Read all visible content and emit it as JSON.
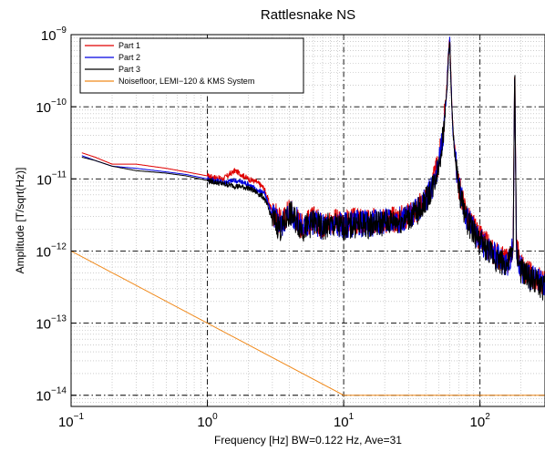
{
  "chart_data": {
    "type": "line",
    "title": "Rattlesnake NS",
    "xlabel": "Frequency [Hz]  BW=0.122 Hz, Ave=31",
    "ylabel": "Amplitude [T/sqrt(Hz)]",
    "xscale": "log",
    "yscale": "log",
    "xlim": [
      0.1,
      300
    ],
    "ylim": [
      7e-15,
      1e-09
    ],
    "x_ticks": [
      {
        "base": "10",
        "exp": "−1"
      },
      {
        "base": "10",
        "exp": "0"
      },
      {
        "base": "10",
        "exp": "1"
      },
      {
        "base": "10",
        "exp": "2"
      }
    ],
    "y_ticks": [
      {
        "base": "10",
        "exp": "−9"
      },
      {
        "base": "10",
        "exp": "−10"
      },
      {
        "base": "10",
        "exp": "−11"
      },
      {
        "base": "10",
        "exp": "−12"
      },
      {
        "base": "10",
        "exp": "−13"
      },
      {
        "base": "10",
        "exp": "−14"
      }
    ],
    "grid": true,
    "legend_position": "top-left",
    "series": [
      {
        "name": "Part 1",
        "color": "#e00000",
        "x": [
          0.12,
          0.15,
          0.2,
          0.3,
          0.5,
          0.7,
          1.0,
          1.3,
          1.6,
          2.0,
          2.3,
          2.6,
          3.0,
          3.5,
          4.0,
          5.0,
          6.0,
          7.0,
          8.0,
          10,
          12,
          15,
          20,
          25,
          30,
          35,
          40,
          45,
          50,
          54,
          57,
          59,
          60,
          61,
          63,
          66,
          70,
          80,
          100,
          130,
          160,
          175,
          180,
          185,
          200,
          250,
          300
        ],
        "y": [
          2.3e-11,
          2e-11,
          1.6e-11,
          1.6e-11,
          1.4e-11,
          1.25e-11,
          1.1e-11,
          1e-11,
          1.3e-11,
          1e-11,
          9e-12,
          7.5e-12,
          3.5e-12,
          2.4e-12,
          3.8e-12,
          2.2e-12,
          2.8e-12,
          2.3e-12,
          2.6e-12,
          2.4e-12,
          2.6e-12,
          2.5e-12,
          2.7e-12,
          2.8e-12,
          3.1e-12,
          3.8e-12,
          5.5e-12,
          8.5e-12,
          1.8e-11,
          5e-11,
          1.8e-10,
          6e-10,
          9.5e-10,
          3e-10,
          6e-11,
          2e-11,
          8e-12,
          3e-12,
          1.5e-12,
          9e-13,
          7e-13,
          1.2e-12,
          3.5e-10,
          1.2e-12,
          6e-13,
          4.5e-13,
          3.5e-13
        ]
      },
      {
        "name": "Part 2",
        "color": "#0000e0",
        "x": [
          0.12,
          0.15,
          0.2,
          0.3,
          0.5,
          0.7,
          1.0,
          1.3,
          1.6,
          2.0,
          2.3,
          2.6,
          3.0,
          3.5,
          4.0,
          5.0,
          6.0,
          7.0,
          8.0,
          10,
          12,
          15,
          20,
          25,
          30,
          35,
          40,
          45,
          50,
          54,
          57,
          59,
          60,
          61,
          63,
          66,
          70,
          80,
          100,
          130,
          160,
          175,
          180,
          185,
          200,
          250,
          300
        ],
        "y": [
          2.1e-11,
          1.8e-11,
          1.5e-11,
          1.4e-11,
          1.25e-11,
          1.15e-11,
          1e-11,
          9e-12,
          9.5e-12,
          8.5e-12,
          7e-12,
          6.5e-12,
          3.2e-12,
          2.3e-12,
          3.6e-12,
          2.1e-12,
          2.6e-12,
          2.2e-12,
          2.4e-12,
          2.3e-12,
          2.4e-12,
          2.4e-12,
          2.6e-12,
          2.7e-12,
          3e-12,
          3.6e-12,
          5.2e-12,
          8e-12,
          1.7e-11,
          4.5e-11,
          1.7e-10,
          5.5e-10,
          9e-10,
          2.8e-10,
          5.5e-11,
          1.9e-11,
          7.5e-12,
          2.8e-12,
          1.4e-12,
          8.5e-13,
          6.5e-13,
          1.1e-12,
          3.3e-10,
          1.1e-12,
          5.5e-13,
          4e-13,
          3.2e-13
        ]
      },
      {
        "name": "Part 3",
        "color": "#000000",
        "x": [
          0.12,
          0.15,
          0.2,
          0.3,
          0.5,
          0.7,
          1.0,
          1.3,
          1.6,
          2.0,
          2.3,
          2.6,
          3.0,
          3.5,
          4.0,
          5.0,
          6.0,
          7.0,
          8.0,
          10,
          12,
          15,
          20,
          25,
          30,
          35,
          40,
          45,
          50,
          54,
          57,
          59,
          60,
          61,
          63,
          66,
          70,
          80,
          100,
          130,
          160,
          175,
          180,
          185,
          200,
          250,
          300
        ],
        "y": [
          2e-11,
          1.8e-11,
          1.5e-11,
          1.3e-11,
          1.2e-11,
          1.1e-11,
          9.5e-12,
          8.5e-12,
          8e-12,
          7.5e-12,
          6.5e-12,
          5.5e-12,
          2.8e-12,
          2e-12,
          3.4e-12,
          2e-12,
          2.5e-12,
          2e-12,
          2.3e-12,
          2.1e-12,
          2.3e-12,
          2.3e-12,
          2.5e-12,
          2.6e-12,
          2.9e-12,
          3.5e-12,
          5e-12,
          7.8e-12,
          1.6e-11,
          4.4e-11,
          1.6e-10,
          5.2e-10,
          8.8e-10,
          2.7e-10,
          5.3e-11,
          1.8e-11,
          7.2e-12,
          2.7e-12,
          1.3e-12,
          8e-13,
          6.2e-13,
          1.05e-12,
          3.2e-10,
          1.05e-12,
          5.2e-13,
          3.8e-13,
          3e-13
        ]
      },
      {
        "name": "Noisefloor, LEMI−120 & KMS System",
        "color": "#f08a1c",
        "x": [
          0.1,
          1,
          10,
          300
        ],
        "y": [
          1e-12,
          1e-13,
          1e-14,
          1e-14
        ]
      }
    ]
  }
}
